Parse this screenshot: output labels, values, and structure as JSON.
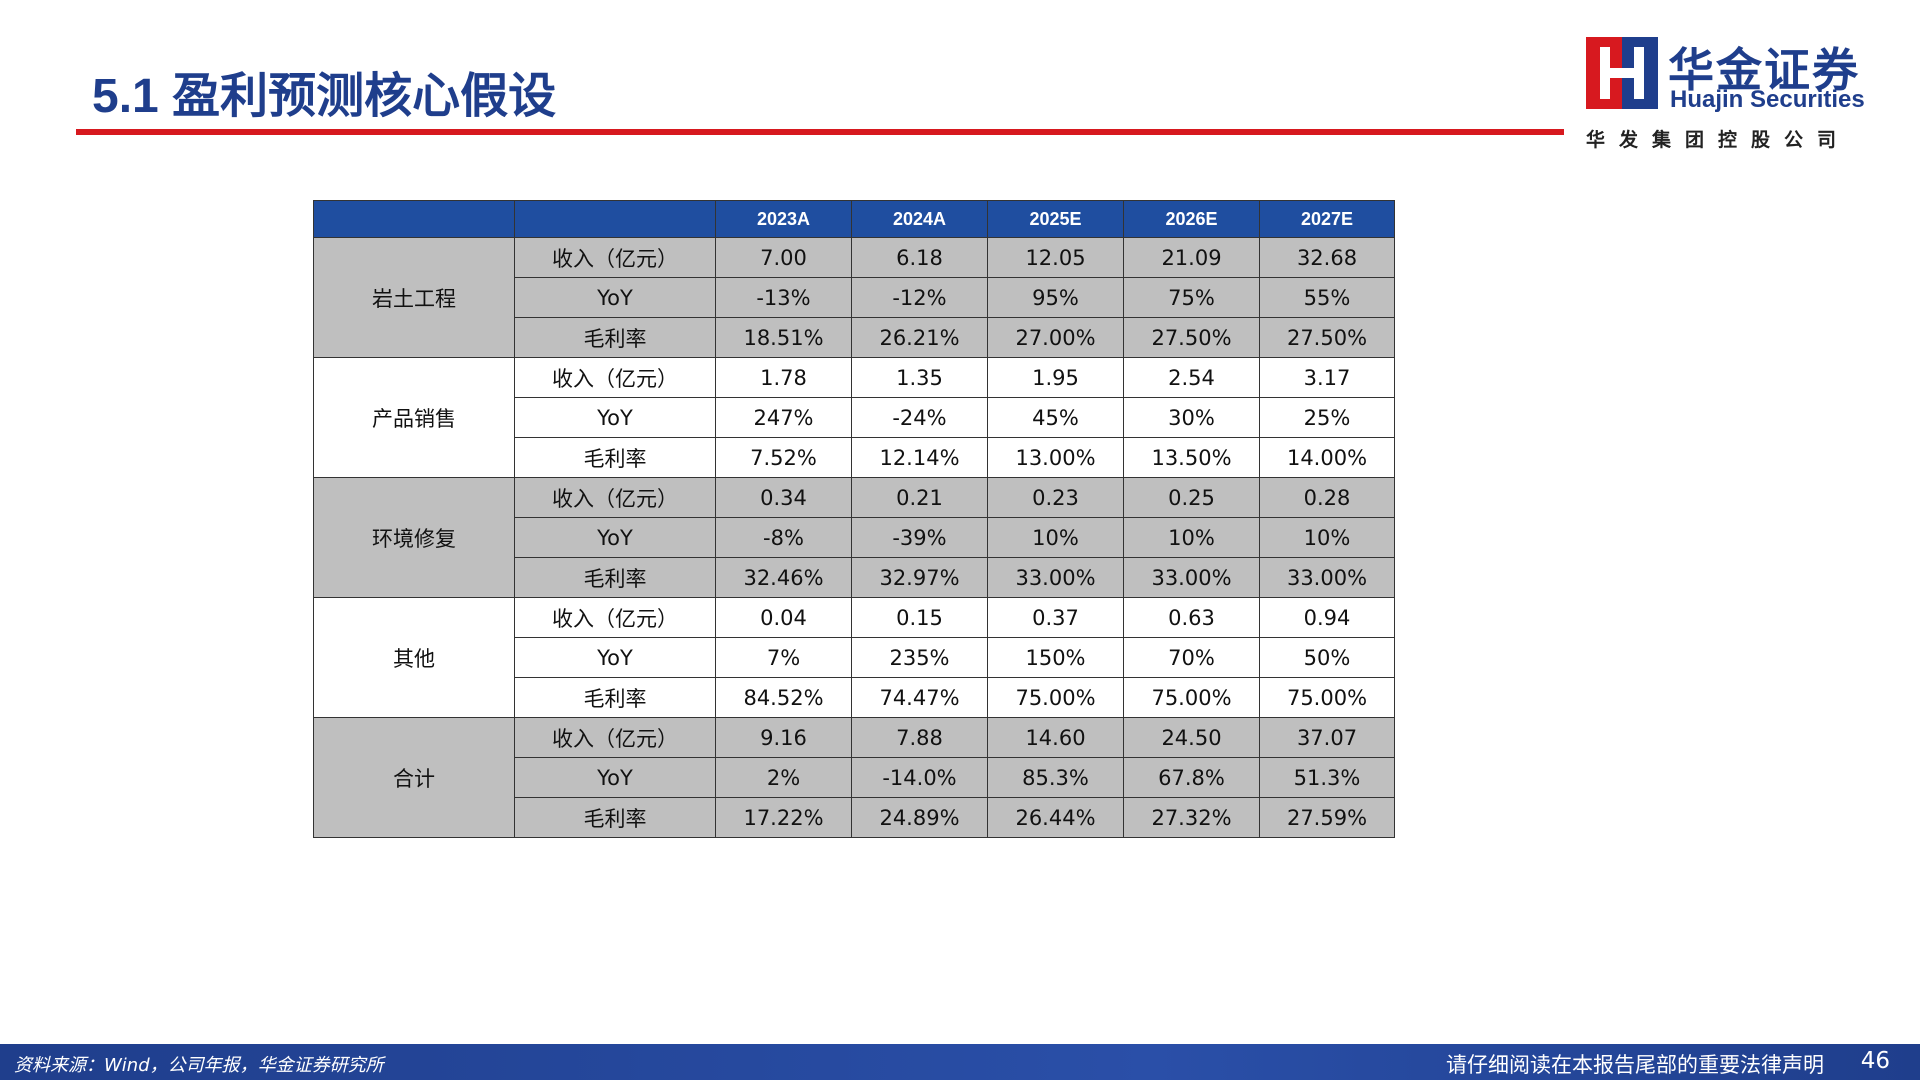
{
  "header": {
    "title": "5.1 盈利预测核心假设",
    "logo_name": "华金证券",
    "logo_english": "Huajin Securities",
    "logo_group": "华发集团控股公司"
  },
  "table": {
    "years": [
      "2023A",
      "2024A",
      "2025E",
      "2026E",
      "2027E"
    ],
    "groups": [
      {
        "name": "岩土工程",
        "rows": [
          {
            "label": "收入（亿元）",
            "values": [
              "7.00",
              "6.18",
              "12.05",
              "21.09",
              "32.68"
            ]
          },
          {
            "label": "YoY",
            "values": [
              "-13%",
              "-12%",
              "95%",
              "75%",
              "55%"
            ]
          },
          {
            "label": "毛利率",
            "values": [
              "18.51%",
              "26.21%",
              "27.00%",
              "27.50%",
              "27.50%"
            ]
          }
        ]
      },
      {
        "name": "产品销售",
        "rows": [
          {
            "label": "收入（亿元）",
            "values": [
              "1.78",
              "1.35",
              "1.95",
              "2.54",
              "3.17"
            ]
          },
          {
            "label": "YoY",
            "values": [
              "247%",
              "-24%",
              "45%",
              "30%",
              "25%"
            ]
          },
          {
            "label": "毛利率",
            "values": [
              "7.52%",
              "12.14%",
              "13.00%",
              "13.50%",
              "14.00%"
            ]
          }
        ]
      },
      {
        "name": "环境修复",
        "rows": [
          {
            "label": "收入（亿元）",
            "values": [
              "0.34",
              "0.21",
              "0.23",
              "0.25",
              "0.28"
            ]
          },
          {
            "label": "YoY",
            "values": [
              "-8%",
              "-39%",
              "10%",
              "10%",
              "10%"
            ]
          },
          {
            "label": "毛利率",
            "values": [
              "32.46%",
              "32.97%",
              "33.00%",
              "33.00%",
              "33.00%"
            ]
          }
        ]
      },
      {
        "name": "其他",
        "rows": [
          {
            "label": "收入（亿元）",
            "values": [
              "0.04",
              "0.15",
              "0.37",
              "0.63",
              "0.94"
            ]
          },
          {
            "label": "YoY",
            "values": [
              "7%",
              "235%",
              "150%",
              "70%",
              "50%"
            ]
          },
          {
            "label": "毛利率",
            "values": [
              "84.52%",
              "74.47%",
              "75.00%",
              "75.00%",
              "75.00%"
            ]
          }
        ]
      },
      {
        "name": "合计",
        "rows": [
          {
            "label": "收入（亿元）",
            "values": [
              "9.16",
              "7.88",
              "14.60",
              "24.50",
              "37.07"
            ]
          },
          {
            "label": "YoY",
            "values": [
              "2%",
              "-14.0%",
              "85.3%",
              "67.8%",
              "51.3%"
            ]
          },
          {
            "label": "毛利率",
            "values": [
              "17.22%",
              "24.89%",
              "26.44%",
              "27.32%",
              "27.59%"
            ]
          }
        ]
      }
    ]
  },
  "footer": {
    "source": "资料来源：Wind，公司年报，华金证券研究所",
    "disclaimer": "请仔细阅读在本报告尾部的重要法律声明",
    "page": "46"
  }
}
